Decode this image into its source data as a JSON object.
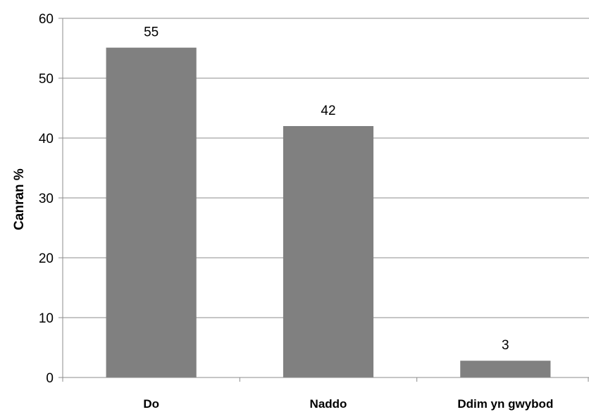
{
  "chart_data": {
    "type": "bar",
    "categories": [
      "Do",
      "Naddo",
      "Ddim yn gwybod"
    ],
    "values": [
      55,
      42,
      3
    ],
    "data_labels": [
      "55",
      "42",
      "3"
    ],
    "bar_values": [
      55.1,
      42,
      2.8
    ],
    "title": "",
    "xlabel": "",
    "ylabel": "Canran %",
    "ylim": [
      0,
      60
    ],
    "yticks": [
      0,
      10,
      20,
      30,
      40,
      50,
      60
    ],
    "grid": true,
    "legend": "none",
    "colors": {
      "bar": "#808080",
      "grid": "#8c8c8c",
      "axis": "#8c8c8c"
    }
  }
}
